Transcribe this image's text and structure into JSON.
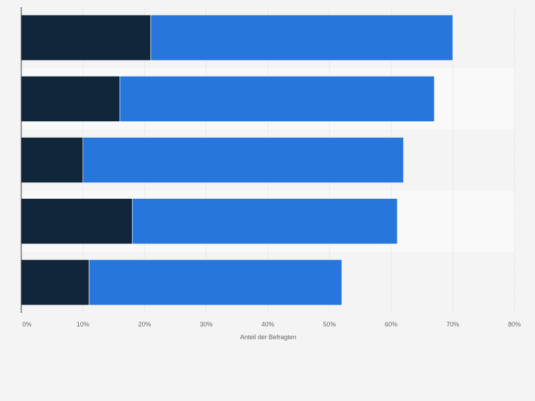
{
  "chart_data": {
    "type": "bar",
    "orientation": "horizontal",
    "stacked": true,
    "title": "",
    "xlabel": "Anteil der Befragten",
    "ylabel": "",
    "xlim": [
      0,
      80
    ],
    "x_ticks": [
      "0%",
      "10%",
      "20%",
      "30%",
      "40%",
      "50%",
      "60%",
      "70%",
      "80%"
    ],
    "categories": [
      "",
      "",
      "",
      "",
      ""
    ],
    "series": [
      {
        "values": [
          21,
          16,
          10,
          18,
          11
        ]
      },
      {
        "values": [
          49,
          51,
          52,
          43,
          41
        ]
      }
    ],
    "grid": true,
    "legend": "none"
  },
  "colors": {
    "series": [
      "#12263b",
      "#2776dc"
    ],
    "band_light": "#f9f9f9",
    "band_dark": "#f4f4f4",
    "grid": "#dedede",
    "axis": "#333333",
    "tick_text": "#666666"
  }
}
